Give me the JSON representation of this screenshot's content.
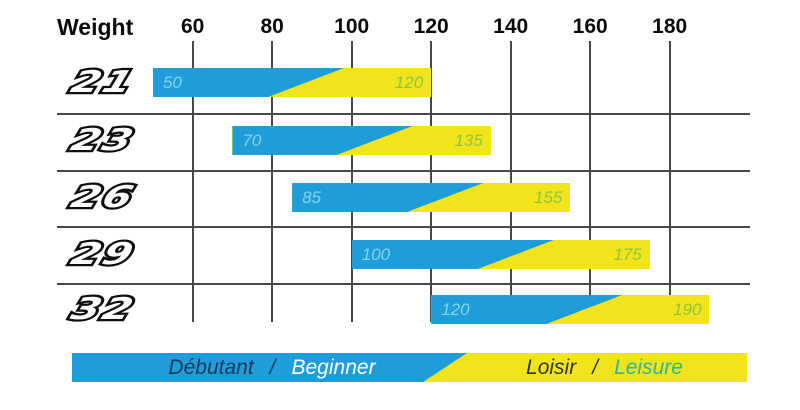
{
  "colors": {
    "bar_blue": "#1E9DD8",
    "bar_yellow": "#F2E41A",
    "grid_line": "#474747",
    "range_min_text": "#85D4F3",
    "range_max_text": "#8CC63F",
    "legend_fr_on_blue": "#17395F",
    "legend_en_on_blue": "#FFFFFF",
    "legend_fr_on_yellow": "#333333",
    "legend_en_on_yellow": "#2EB49C"
  },
  "chart_data": {
    "type": "bar",
    "orientation": "horizontal-range",
    "title": "Weight",
    "x_ticks": [
      60,
      80,
      100,
      120,
      140,
      160,
      180
    ],
    "x_range": [
      40,
      200
    ],
    "categories": [
      "21",
      "23",
      "26",
      "29",
      "32"
    ],
    "series": [
      {
        "name": "range start (beginner)",
        "values": [
          50,
          70,
          85,
          100,
          120
        ]
      },
      {
        "name": "range end (leisure)",
        "values": [
          120,
          135,
          155,
          175,
          190
        ]
      }
    ],
    "rows": [
      {
        "size": "21",
        "min": 50,
        "max": 120
      },
      {
        "size": "23",
        "min": 70,
        "max": 135
      },
      {
        "size": "26",
        "min": 85,
        "max": 155
      },
      {
        "size": "29",
        "min": 100,
        "max": 175
      },
      {
        "size": "32",
        "min": 120,
        "max": 190
      }
    ],
    "grid": "on",
    "legend_position": "bottom"
  },
  "legend": {
    "separator": "/",
    "segments": [
      {
        "color": "blue",
        "label_fr": "Débutant",
        "label_en": "Beginner"
      },
      {
        "color": "yellow",
        "label_fr": "Loisir",
        "label_en": "Leisure"
      }
    ]
  }
}
